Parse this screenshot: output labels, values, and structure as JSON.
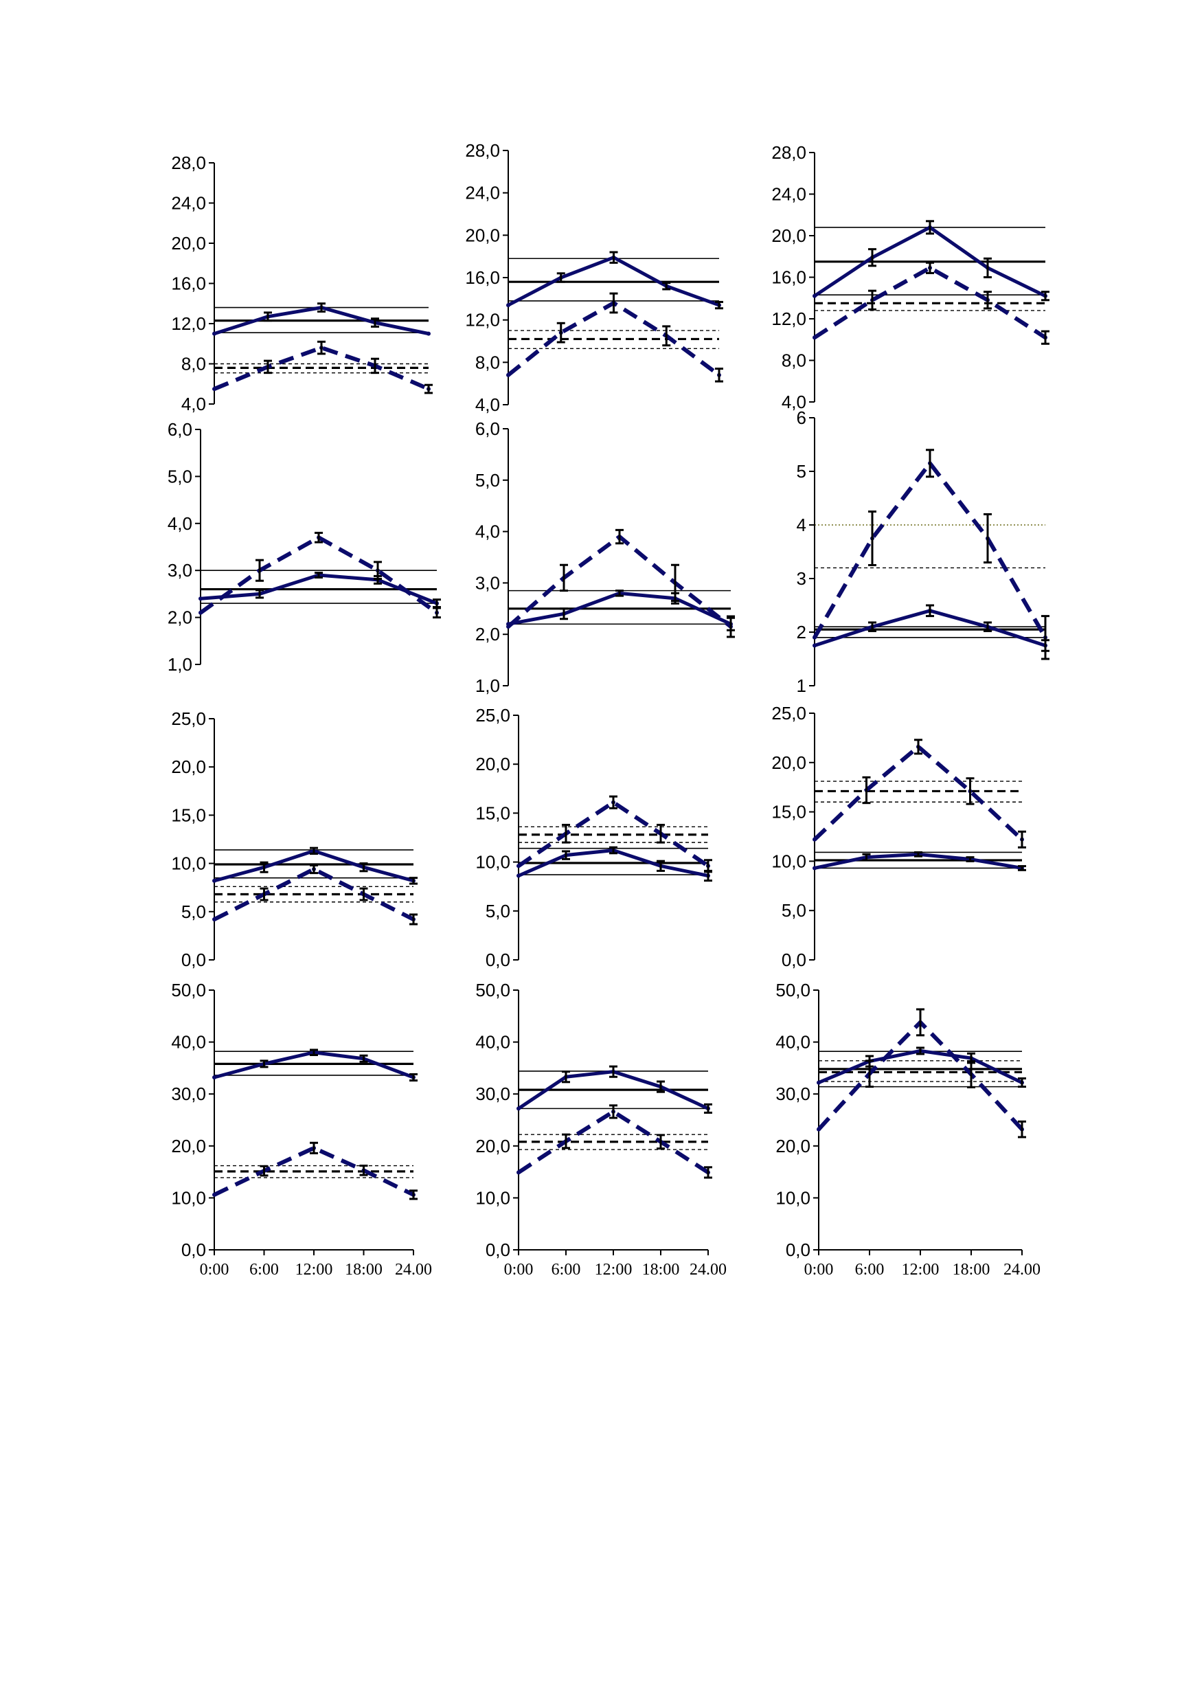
{
  "figure": {
    "colors": {
      "series": "#0b0b6b",
      "reference": "#000000",
      "axis": "#000000",
      "threshold_dotted": "#6b6b1a"
    }
  },
  "chart_data": [
    {
      "type": "line",
      "panel": "r1c1",
      "x": [
        "0:00",
        "6:00",
        "12:00",
        "18:00",
        "24:00"
      ],
      "xticks_shown": false,
      "yticks": [
        "4,0",
        "8,0",
        "12,0",
        "16,0",
        "20,0",
        "24,0",
        "28,0"
      ],
      "ylim": [
        4,
        28
      ],
      "series": [
        {
          "style": "solid",
          "values": [
            11.0,
            12.7,
            13.6,
            12.1,
            11.0
          ],
          "errors": [
            0,
            0.4,
            0.4,
            0.4,
            0
          ]
        },
        {
          "style": "dashed",
          "values": [
            5.5,
            7.7,
            9.6,
            7.8,
            5.5
          ],
          "errors": [
            0,
            0.6,
            0.6,
            0.7,
            0.4
          ]
        }
      ],
      "reference_lines": [
        {
          "style": "solid-thin",
          "y": 13.6
        },
        {
          "style": "solid-bold",
          "y": 12.3
        },
        {
          "style": "solid-thin",
          "y": 11.1
        },
        {
          "style": "dashed-thin",
          "y": 8.0
        },
        {
          "style": "dashed-bold",
          "y": 7.6
        },
        {
          "style": "dashed-thin",
          "y": 7.1
        }
      ]
    },
    {
      "type": "line",
      "panel": "r1c2",
      "x": [
        "0:00",
        "6:00",
        "12:00",
        "18:00",
        "24:00"
      ],
      "xticks_shown": false,
      "yticks": [
        "4,0",
        "8,0",
        "12,0",
        "16,0",
        "20,0",
        "24,0",
        "28,0"
      ],
      "ylim": [
        4,
        28
      ],
      "series": [
        {
          "style": "solid",
          "values": [
            13.4,
            16.0,
            17.9,
            15.2,
            13.4
          ],
          "errors": [
            0,
            0.4,
            0.5,
            0.3,
            0.3
          ]
        },
        {
          "style": "dashed",
          "values": [
            6.8,
            10.8,
            13.6,
            10.5,
            6.8
          ],
          "errors": [
            0,
            0.9,
            0.9,
            0.9,
            0.6
          ]
        }
      ],
      "reference_lines": [
        {
          "style": "solid-thin",
          "y": 17.8
        },
        {
          "style": "solid-bold",
          "y": 15.6
        },
        {
          "style": "solid-thin",
          "y": 13.8
        },
        {
          "style": "dashed-thin",
          "y": 11.0
        },
        {
          "style": "dashed-bold",
          "y": 10.2
        },
        {
          "style": "dashed-thin",
          "y": 9.3
        }
      ]
    },
    {
      "type": "line",
      "panel": "r1c3",
      "x": [
        "0:00",
        "6:00",
        "12:00",
        "18:00",
        "24:00"
      ],
      "xticks_shown": false,
      "yticks": [
        "4,0",
        "8,0",
        "12,0",
        "16,0",
        "20,0",
        "24,0",
        "28,0"
      ],
      "ylim": [
        4,
        28
      ],
      "series": [
        {
          "style": "solid",
          "values": [
            14.2,
            17.9,
            20.8,
            16.9,
            14.2
          ],
          "errors": [
            0,
            0.8,
            0.6,
            0.9,
            0.4
          ]
        },
        {
          "style": "dashed",
          "values": [
            10.2,
            13.8,
            16.9,
            13.8,
            10.2
          ],
          "errors": [
            0,
            0.9,
            0.5,
            0.8,
            0.6
          ]
        }
      ],
      "reference_lines": [
        {
          "style": "solid-thin",
          "y": 20.8
        },
        {
          "style": "solid-bold",
          "y": 17.5
        },
        {
          "style": "solid-thin",
          "y": 14.3
        },
        {
          "style": "dashed-thin",
          "y": 14.3
        },
        {
          "style": "dashed-bold",
          "y": 13.5
        },
        {
          "style": "dashed-thin",
          "y": 12.8
        }
      ]
    },
    {
      "type": "line",
      "panel": "r2c1",
      "x": [
        "0:00",
        "6:00",
        "12:00",
        "18:00",
        "24:00"
      ],
      "xticks_shown": false,
      "yticks": [
        "1,0",
        "2,0",
        "3,0",
        "4,0",
        "5,0",
        "6,0"
      ],
      "ylim": [
        1,
        6
      ],
      "series": [
        {
          "style": "solid",
          "values": [
            2.4,
            2.5,
            2.9,
            2.8,
            2.3
          ],
          "errors": [
            0,
            0.08,
            0.05,
            0.08,
            0.08
          ]
        },
        {
          "style": "dashed",
          "values": [
            2.1,
            3.0,
            3.7,
            3.0,
            2.1
          ],
          "errors": [
            0,
            0.22,
            0.1,
            0.18,
            0.1
          ]
        }
      ],
      "reference_lines": [
        {
          "style": "solid-thin",
          "y": 3.0
        },
        {
          "style": "solid-bold",
          "y": 2.6
        },
        {
          "style": "solid-thin",
          "y": 2.3
        }
      ]
    },
    {
      "type": "line",
      "panel": "r2c2",
      "x": [
        "0:00",
        "6:00",
        "12:00",
        "18:00",
        "24:00"
      ],
      "xticks_shown": false,
      "yticks": [
        "1,0",
        "2,0",
        "3,0",
        "4,0",
        "5,0",
        "6,0"
      ],
      "ylim": [
        1,
        6
      ],
      "series": [
        {
          "style": "solid",
          "values": [
            2.2,
            2.4,
            2.8,
            2.7,
            2.2
          ],
          "errors": [
            0,
            0.1,
            0.05,
            0.1,
            0.12
          ]
        },
        {
          "style": "dashed",
          "values": [
            2.15,
            3.1,
            3.9,
            3.0,
            2.15
          ],
          "errors": [
            0,
            0.25,
            0.13,
            0.35,
            0.2
          ]
        }
      ],
      "reference_lines": [
        {
          "style": "solid-thin",
          "y": 2.85
        },
        {
          "style": "solid-bold",
          "y": 2.5
        },
        {
          "style": "solid-thin",
          "y": 2.2
        }
      ]
    },
    {
      "type": "line",
      "panel": "r2c3",
      "x": [
        "0:00",
        "6:00",
        "12:00",
        "18:00",
        "24:00"
      ],
      "xticks_shown": false,
      "yticks": [
        "1",
        "2",
        "3",
        "4",
        "5",
        "6"
      ],
      "ylim": [
        1,
        6
      ],
      "series": [
        {
          "style": "solid",
          "values": [
            1.75,
            2.1,
            2.4,
            2.1,
            1.75
          ],
          "errors": [
            0,
            0.08,
            0.1,
            0.08,
            0.1
          ]
        },
        {
          "style": "dashed",
          "values": [
            1.9,
            3.75,
            5.15,
            3.75,
            1.9
          ],
          "errors": [
            0,
            0.5,
            0.25,
            0.45,
            0.4
          ]
        }
      ],
      "reference_lines": [
        {
          "style": "solid-thin",
          "y": 2.1
        },
        {
          "style": "solid-bold",
          "y": 2.05
        },
        {
          "style": "solid-thin",
          "y": 1.9
        },
        {
          "style": "dotted-colored",
          "y": 4.0
        },
        {
          "style": "dashed-thin",
          "y": 3.2
        }
      ]
    },
    {
      "type": "line",
      "panel": "r3c1",
      "x": [
        "0:00",
        "6:00",
        "12:00",
        "18:00",
        "24:00"
      ],
      "xticks_shown": false,
      "yticks": [
        "0,0",
        "5,0",
        "10,0",
        "15,0",
        "20,0",
        "25,0"
      ],
      "ylim": [
        0,
        25
      ],
      "series": [
        {
          "style": "solid",
          "values": [
            8.2,
            9.6,
            11.3,
            9.6,
            8.2
          ],
          "errors": [
            0,
            0.5,
            0.3,
            0.4,
            0.3
          ]
        },
        {
          "style": "dashed",
          "values": [
            4.2,
            6.8,
            9.4,
            6.8,
            4.2
          ],
          "errors": [
            0,
            0.6,
            0.4,
            0.6,
            0.5
          ]
        }
      ],
      "reference_lines": [
        {
          "style": "solid-thin",
          "y": 11.4
        },
        {
          "style": "solid-bold",
          "y": 9.9
        },
        {
          "style": "solid-thin",
          "y": 8.5
        },
        {
          "style": "dashed-thin",
          "y": 7.6
        },
        {
          "style": "dashed-bold",
          "y": 6.8
        },
        {
          "style": "dashed-thin",
          "y": 6.0
        }
      ]
    },
    {
      "type": "line",
      "panel": "r3c2",
      "x": [
        "0:00",
        "6:00",
        "12:00",
        "18:00",
        "24:00"
      ],
      "xticks_shown": false,
      "yticks": [
        "0,0",
        "5,0",
        "10,0",
        "15,0",
        "20,0",
        "25,0"
      ],
      "ylim": [
        0,
        25
      ],
      "series": [
        {
          "style": "solid",
          "values": [
            8.6,
            10.7,
            11.2,
            9.6,
            8.6
          ],
          "errors": [
            0,
            0.4,
            0.3,
            0.5,
            0.5
          ]
        },
        {
          "style": "dashed",
          "values": [
            9.6,
            12.9,
            16.1,
            12.9,
            9.6
          ],
          "errors": [
            0,
            0.9,
            0.6,
            0.9,
            0.6
          ]
        }
      ],
      "reference_lines": [
        {
          "style": "solid-thin",
          "y": 11.4
        },
        {
          "style": "solid-bold",
          "y": 9.9
        },
        {
          "style": "solid-thin",
          "y": 8.7
        },
        {
          "style": "dashed-thin",
          "y": 13.6
        },
        {
          "style": "dashed-bold",
          "y": 12.8
        },
        {
          "style": "dashed-thin",
          "y": 12.0
        }
      ]
    },
    {
      "type": "line",
      "panel": "r3c3",
      "x": [
        "0:00",
        "6:00",
        "12:00",
        "18:00",
        "24:00"
      ],
      "xticks_shown": false,
      "yticks": [
        "0,0",
        "5,0",
        "10,0",
        "15,0",
        "20,0",
        "25,0"
      ],
      "ylim": [
        0,
        25
      ],
      "series": [
        {
          "style": "solid",
          "values": [
            9.3,
            10.4,
            10.7,
            10.2,
            9.3
          ],
          "errors": [
            0,
            0.3,
            0.2,
            0.2,
            0.2
          ]
        },
        {
          "style": "dashed",
          "values": [
            12.2,
            17.2,
            21.6,
            17.1,
            12.2
          ],
          "errors": [
            0,
            1.3,
            0.7,
            1.3,
            0.8
          ]
        }
      ],
      "reference_lines": [
        {
          "style": "solid-thin",
          "y": 10.9
        },
        {
          "style": "solid-bold",
          "y": 10.1
        },
        {
          "style": "solid-thin",
          "y": 9.3
        },
        {
          "style": "dashed-thin",
          "y": 18.1
        },
        {
          "style": "dashed-bold",
          "y": 17.1
        },
        {
          "style": "dashed-thin",
          "y": 16.0
        }
      ]
    },
    {
      "type": "line",
      "panel": "r4c1",
      "x": [
        "0:00",
        "6:00",
        "12:00",
        "18:00",
        "24.00"
      ],
      "xticks_shown": true,
      "yticks": [
        "0,0",
        "10,0",
        "20,0",
        "30,0",
        "40,0",
        "50,0"
      ],
      "ylim": [
        0,
        50
      ],
      "series": [
        {
          "style": "solid",
          "values": [
            33.2,
            35.8,
            38.0,
            36.8,
            33.2
          ],
          "errors": [
            0,
            0.6,
            0.5,
            0.6,
            0.6
          ]
        },
        {
          "style": "dashed",
          "values": [
            10.6,
            15.2,
            19.6,
            15.3,
            10.6
          ],
          "errors": [
            0,
            0.9,
            1.0,
            0.9,
            0.8
          ]
        }
      ],
      "reference_lines": [
        {
          "style": "solid-thin",
          "y": 38.2
        },
        {
          "style": "solid-bold",
          "y": 35.8
        },
        {
          "style": "solid-thin",
          "y": 33.6
        },
        {
          "style": "dashed-thin",
          "y": 16.2
        },
        {
          "style": "dashed-bold",
          "y": 15.1
        },
        {
          "style": "dashed-thin",
          "y": 13.9
        }
      ]
    },
    {
      "type": "line",
      "panel": "r4c2",
      "x": [
        "0:00",
        "6:00",
        "12:00",
        "18:00",
        "24.00"
      ],
      "xticks_shown": true,
      "yticks": [
        "0,0",
        "10,0",
        "20,0",
        "30,0",
        "40,0",
        "50,0"
      ],
      "ylim": [
        0,
        50
      ],
      "series": [
        {
          "style": "solid",
          "values": [
            27.2,
            33.3,
            34.3,
            31.4,
            27.2
          ],
          "errors": [
            0,
            1.0,
            1.0,
            1.0,
            0.8
          ]
        },
        {
          "style": "dashed",
          "values": [
            14.9,
            20.9,
            26.6,
            20.8,
            14.9
          ],
          "errors": [
            0,
            1.3,
            1.2,
            1.3,
            1.0
          ]
        }
      ],
      "reference_lines": [
        {
          "style": "solid-thin",
          "y": 34.4
        },
        {
          "style": "solid-bold",
          "y": 30.8
        },
        {
          "style": "solid-thin",
          "y": 27.2
        },
        {
          "style": "dashed-thin",
          "y": 22.2
        },
        {
          "style": "dashed-bold",
          "y": 20.8
        },
        {
          "style": "dashed-thin",
          "y": 19.3
        }
      ]
    },
    {
      "type": "line",
      "panel": "r4c3",
      "x": [
        "0:00",
        "6:00",
        "12:00",
        "18:00",
        "24.00"
      ],
      "xticks_shown": true,
      "yticks": [
        "0,0",
        "10,0",
        "20,0",
        "30,0",
        "40,0",
        "50,0"
      ],
      "ylim": [
        0,
        50
      ],
      "series": [
        {
          "style": "solid",
          "values": [
            32.2,
            36.3,
            38.3,
            36.9,
            32.2
          ],
          "errors": [
            0,
            1.0,
            0.6,
            0.9,
            0.8
          ]
        },
        {
          "style": "dashed",
          "values": [
            23.2,
            33.9,
            43.8,
            33.8,
            23.2
          ],
          "errors": [
            0,
            2.5,
            2.5,
            2.5,
            1.5
          ]
        }
      ],
      "reference_lines": [
        {
          "style": "solid-thin",
          "y": 38.2
        },
        {
          "style": "solid-bold",
          "y": 34.8
        },
        {
          "style": "solid-thin",
          "y": 31.4
        },
        {
          "style": "dashed-thin",
          "y": 36.4
        },
        {
          "style": "dashed-bold",
          "y": 34.2
        },
        {
          "style": "dashed-thin",
          "y": 32.4
        }
      ]
    }
  ]
}
